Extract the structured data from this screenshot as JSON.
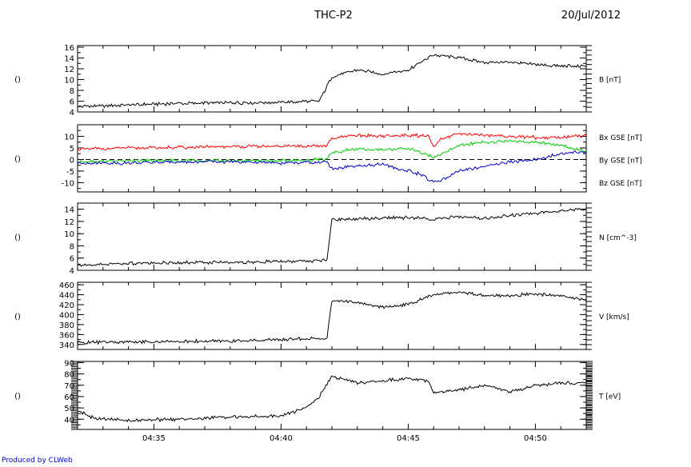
{
  "header": {
    "title": "THC-P2",
    "date": "20/Jul/2012"
  },
  "credit": "Produced by CLWeb",
  "chart_data": [
    {
      "type": "line",
      "ylabel_left": "()",
      "ylim": [
        4,
        16.3
      ],
      "yticks": [
        4,
        6,
        8,
        10,
        12,
        14,
        16
      ],
      "series": [
        {
          "name": "B [nT]",
          "color": "#000000",
          "x": [
            "04:32",
            "04:34",
            "04:36",
            "04:38",
            "04:40",
            "04:41.5",
            "04:42",
            "04:43",
            "04:44",
            "04:45",
            "04:46",
            "04:47",
            "04:48",
            "04:49",
            "04:50",
            "04:51",
            "04:52"
          ],
          "y": [
            5.0,
            5.3,
            5.6,
            5.7,
            5.8,
            6.0,
            10.5,
            11.8,
            11.0,
            11.8,
            14.6,
            14.0,
            13.2,
            13.2,
            12.8,
            12.5,
            12.5
          ]
        }
      ]
    },
    {
      "type": "line",
      "ylabel_left": "()",
      "ylim": [
        -14,
        15
      ],
      "yticks": [
        -10,
        -5,
        0,
        5,
        10
      ],
      "zero_line": "dashed",
      "series": [
        {
          "name": "Bx GSE [nT]",
          "color": "#ff0000",
          "x": [
            "04:32",
            "04:34",
            "04:36",
            "04:38",
            "04:40",
            "04:41.8",
            "04:42",
            "04:43",
            "04:44",
            "04:45",
            "04:45.8",
            "04:46",
            "04:46.3",
            "04:47",
            "04:48",
            "04:49",
            "04:50",
            "04:51",
            "04:52"
          ],
          "y": [
            4.5,
            5.0,
            5.2,
            5.5,
            5.7,
            6.0,
            9.0,
            10.5,
            10.0,
            10.5,
            10.0,
            5.0,
            9.0,
            11.0,
            10.5,
            10.0,
            9.5,
            9.5,
            10.5
          ]
        },
        {
          "name": "By GSE [nT]",
          "color": "#00cc00",
          "x": [
            "04:32",
            "04:34",
            "04:36",
            "04:38",
            "04:40",
            "04:41.8",
            "04:42",
            "04:43",
            "04:44",
            "04:45",
            "04:46",
            "04:47",
            "04:48",
            "04:49",
            "04:50",
            "04:51",
            "04:52"
          ],
          "y": [
            -1.0,
            -0.5,
            -0.5,
            -0.5,
            -0.5,
            0.0,
            3.0,
            4.5,
            4.0,
            5.0,
            1.0,
            6.0,
            7.5,
            8.0,
            7.5,
            6.0,
            3.5
          ]
        },
        {
          "name": "Bz GSE [nT]",
          "color": "#0000cc",
          "x": [
            "04:32",
            "04:34",
            "04:36",
            "04:38",
            "04:40",
            "04:41.8",
            "04:42",
            "04:43",
            "04:44",
            "04:45",
            "04:45.5",
            "04:46",
            "04:46.5",
            "04:47",
            "04:48",
            "04:49",
            "04:50",
            "04:51",
            "04:52"
          ],
          "y": [
            -1.5,
            -1.5,
            -1.0,
            -1.0,
            -1.5,
            -1.0,
            -4.0,
            -3.0,
            -2.0,
            -5.0,
            -6.5,
            -10.0,
            -8.0,
            -5.0,
            -3.0,
            -1.0,
            0.0,
            2.5,
            3.5
          ]
        }
      ]
    },
    {
      "type": "line",
      "ylabel_left": "()",
      "ylim": [
        4,
        15
      ],
      "yticks": [
        4,
        6,
        8,
        10,
        12,
        14
      ],
      "series": [
        {
          "name": "N [cm^-3]",
          "color": "#000000",
          "x": [
            "04:32",
            "04:34",
            "04:36",
            "04:38",
            "04:40",
            "04:41.8",
            "04:42",
            "04:43",
            "04:44",
            "04:45",
            "04:46",
            "04:47",
            "04:48",
            "04:49",
            "04:50",
            "04:51",
            "04:52"
          ],
          "y": [
            4.8,
            5.1,
            5.3,
            5.3,
            5.4,
            5.6,
            12.3,
            12.4,
            12.6,
            12.6,
            12.4,
            12.8,
            12.5,
            13.0,
            13.3,
            13.8,
            14.0
          ]
        }
      ]
    },
    {
      "type": "line",
      "ylabel_left": "()",
      "ylim": [
        330,
        465
      ],
      "yticks": [
        340,
        360,
        380,
        400,
        420,
        440,
        460
      ],
      "series": [
        {
          "name": "V [km/s]",
          "color": "#000000",
          "x": [
            "04:32",
            "04:34",
            "04:36",
            "04:38",
            "04:40",
            "04:41.8",
            "04:42",
            "04:43",
            "04:44",
            "04:45",
            "04:46",
            "04:47",
            "04:48",
            "04:49",
            "04:50",
            "04:51",
            "04:52"
          ],
          "y": [
            344,
            345,
            346,
            347,
            350,
            352,
            428,
            425,
            415,
            420,
            440,
            445,
            438,
            438,
            442,
            438,
            428
          ]
        }
      ]
    },
    {
      "type": "line",
      "ylabel_left": "()",
      "ylim": [
        31,
        91
      ],
      "yticks": [
        40,
        50,
        60,
        70,
        80,
        90
      ],
      "series": [
        {
          "name": "T [eV]",
          "color": "#000000",
          "x": [
            "04:32",
            "04:32.5",
            "04:33",
            "04:34",
            "04:36",
            "04:38",
            "04:40",
            "04:41",
            "04:41.5",
            "04:42",
            "04:43",
            "04:44",
            "04:45",
            "04:45.8",
            "04:46",
            "04:47",
            "04:48",
            "04:49",
            "04:50",
            "04:51",
            "04:52"
          ],
          "y": [
            48,
            42,
            40,
            39,
            40,
            42,
            43,
            50,
            60,
            78,
            72,
            74,
            76,
            74,
            63,
            66,
            70,
            64,
            70,
            72,
            72
          ]
        }
      ]
    }
  ],
  "x_axis": {
    "range": [
      "04:32",
      "04:52"
    ],
    "tick_labels": [
      "04:35",
      "04:40",
      "04:45",
      "04:50"
    ]
  }
}
